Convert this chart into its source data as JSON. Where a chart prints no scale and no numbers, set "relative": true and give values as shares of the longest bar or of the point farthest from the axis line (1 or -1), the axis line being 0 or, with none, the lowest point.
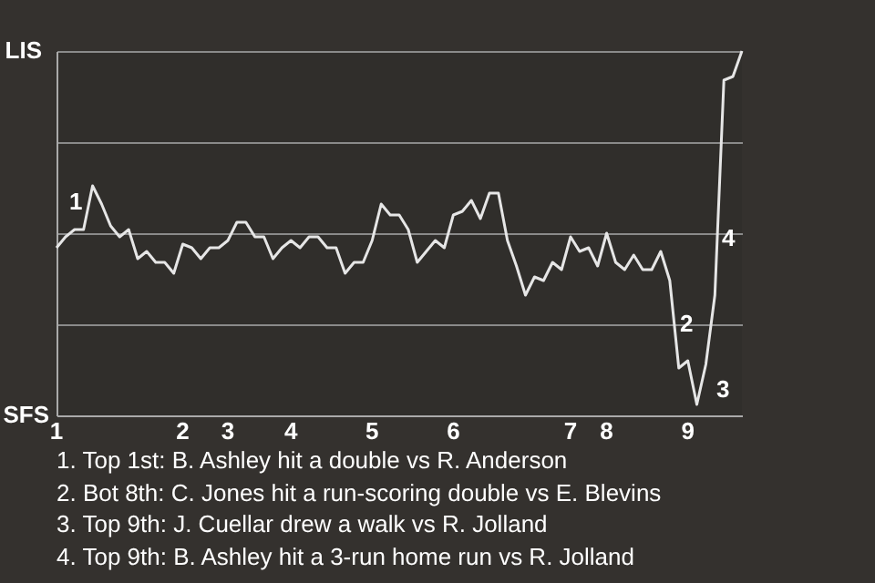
{
  "chart_data": {
    "type": "line",
    "relative": true,
    "categories": [
      "1",
      null,
      null,
      null,
      null,
      null,
      null,
      null,
      null,
      null,
      null,
      null,
      null,
      null,
      "2",
      null,
      null,
      null,
      null,
      "3",
      null,
      null,
      null,
      null,
      null,
      null,
      "4",
      null,
      null,
      null,
      null,
      null,
      null,
      null,
      null,
      "5",
      null,
      null,
      null,
      null,
      null,
      null,
      null,
      null,
      "6",
      null,
      null,
      null,
      null,
      null,
      null,
      null,
      null,
      null,
      null,
      null,
      null,
      "7",
      null,
      null,
      null,
      "8",
      null,
      null,
      null,
      null,
      null,
      null,
      null,
      null,
      "9",
      null,
      null,
      null,
      null,
      null,
      null
    ],
    "series": [
      {
        "color": "#e6e6e6",
        "values": [
          0.46,
          0.49,
          0.51,
          0.51,
          0.63,
          0.58,
          0.52,
          0.49,
          0.51,
          0.43,
          0.45,
          0.42,
          0.42,
          0.39,
          0.47,
          0.46,
          0.43,
          0.46,
          0.46,
          0.48,
          0.53,
          0.53,
          0.49,
          0.49,
          0.43,
          0.46,
          0.48,
          0.46,
          0.49,
          0.49,
          0.46,
          0.46,
          0.39,
          0.42,
          0.42,
          0.48,
          0.58,
          0.55,
          0.55,
          0.51,
          0.42,
          0.45,
          0.48,
          0.46,
          0.55,
          0.56,
          0.59,
          0.54,
          0.61,
          0.61,
          0.48,
          0.41,
          0.33,
          0.38,
          0.37,
          0.42,
          0.4,
          0.49,
          0.45,
          0.46,
          0.41,
          0.5,
          0.42,
          0.4,
          0.44,
          0.4,
          0.4,
          0.45,
          0.37,
          0.13,
          0.15,
          0.03,
          0.14,
          0.33,
          0.92,
          0.93,
          1
        ]
      }
    ],
    "grid": "y",
    "annotations": [
      "LIS",
      "SFS",
      "1",
      "2",
      "3",
      "4",
      "1. Top 1st: B. Ashley hit a double vs R. Anderson",
      "2. Bot 8th: C. Jones hit a run-scoring double vs E. Blevins",
      "3. Top 9th: J. Cuellar drew a walk vs R. Jolland",
      "4. Top 9th: B. Ashley hit a 3-run home run vs R. Jolland"
    ]
  }
}
